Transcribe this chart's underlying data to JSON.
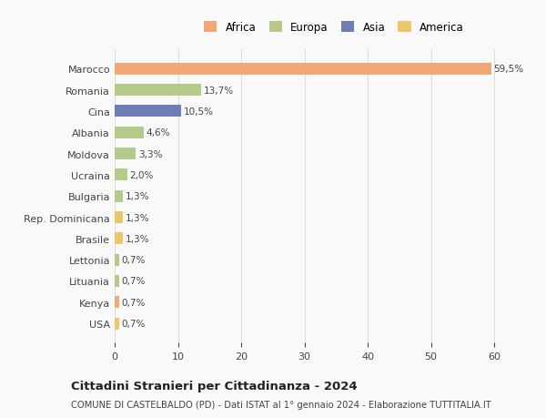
{
  "countries": [
    "Marocco",
    "Romania",
    "Cina",
    "Albania",
    "Moldova",
    "Ucraina",
    "Bulgaria",
    "Rep. Dominicana",
    "Brasile",
    "Lettonia",
    "Lituania",
    "Kenya",
    "USA"
  ],
  "values": [
    59.5,
    13.7,
    10.5,
    4.6,
    3.3,
    2.0,
    1.3,
    1.3,
    1.3,
    0.7,
    0.7,
    0.7,
    0.7
  ],
  "labels": [
    "59,5%",
    "13,7%",
    "10,5%",
    "4,6%",
    "3,3%",
    "2,0%",
    "1,3%",
    "1,3%",
    "1,3%",
    "0,7%",
    "0,7%",
    "0,7%",
    "0,7%"
  ],
  "colors": [
    "#F0A878",
    "#B5C98A",
    "#6B7FB5",
    "#B5C98A",
    "#B5C98A",
    "#B5C98A",
    "#B5C98A",
    "#E8C86A",
    "#E8C86A",
    "#B5C98A",
    "#B5C98A",
    "#F0A878",
    "#E8C86A"
  ],
  "legend_labels": [
    "Africa",
    "Europa",
    "Asia",
    "America"
  ],
  "legend_colors": [
    "#F0A878",
    "#B5C98A",
    "#6B7FB5",
    "#E8C86A"
  ],
  "title": "Cittadini Stranieri per Cittadinanza - 2024",
  "subtitle": "COMUNE DI CASTELBALDO (PD) - Dati ISTAT al 1° gennaio 2024 - Elaborazione TUTTITALIA.IT",
  "xlim": [
    0,
    63
  ],
  "xticks": [
    0,
    10,
    20,
    30,
    40,
    50,
    60
  ],
  "background_color": "#f9f9f9",
  "grid_color": "#dddddd",
  "bar_height": 0.55
}
